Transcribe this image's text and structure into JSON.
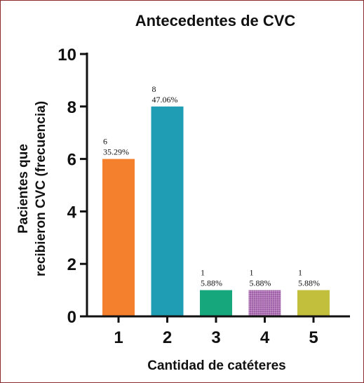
{
  "chart_data": {
    "type": "bar",
    "title": "Antecedentes de CVC",
    "xlabel": "Cantidad de catéteres",
    "ylabel_lines": [
      "Pacientes que",
      "recibieron CVC (frecuencia)"
    ],
    "categories": [
      "1",
      "2",
      "3",
      "4",
      "5"
    ],
    "values": [
      6,
      8,
      1,
      1,
      1
    ],
    "percent_labels": [
      "35.29%",
      "47.06%",
      "5.88%",
      "5.88%",
      "5.88%"
    ],
    "count_labels": [
      "6",
      "8",
      "1",
      "1",
      "1"
    ],
    "ylim": [
      0,
      10
    ],
    "yticks": [
      "0",
      "2",
      "4",
      "6",
      "8",
      "10"
    ],
    "grid": false,
    "bar_colors": [
      "#f47f2d",
      "#1e9db5",
      "#16a77c",
      "#a060a8",
      "#c2bf3c"
    ],
    "bar_patterns": [
      "solid",
      "solid",
      "solid",
      "grid",
      "solid"
    ]
  }
}
